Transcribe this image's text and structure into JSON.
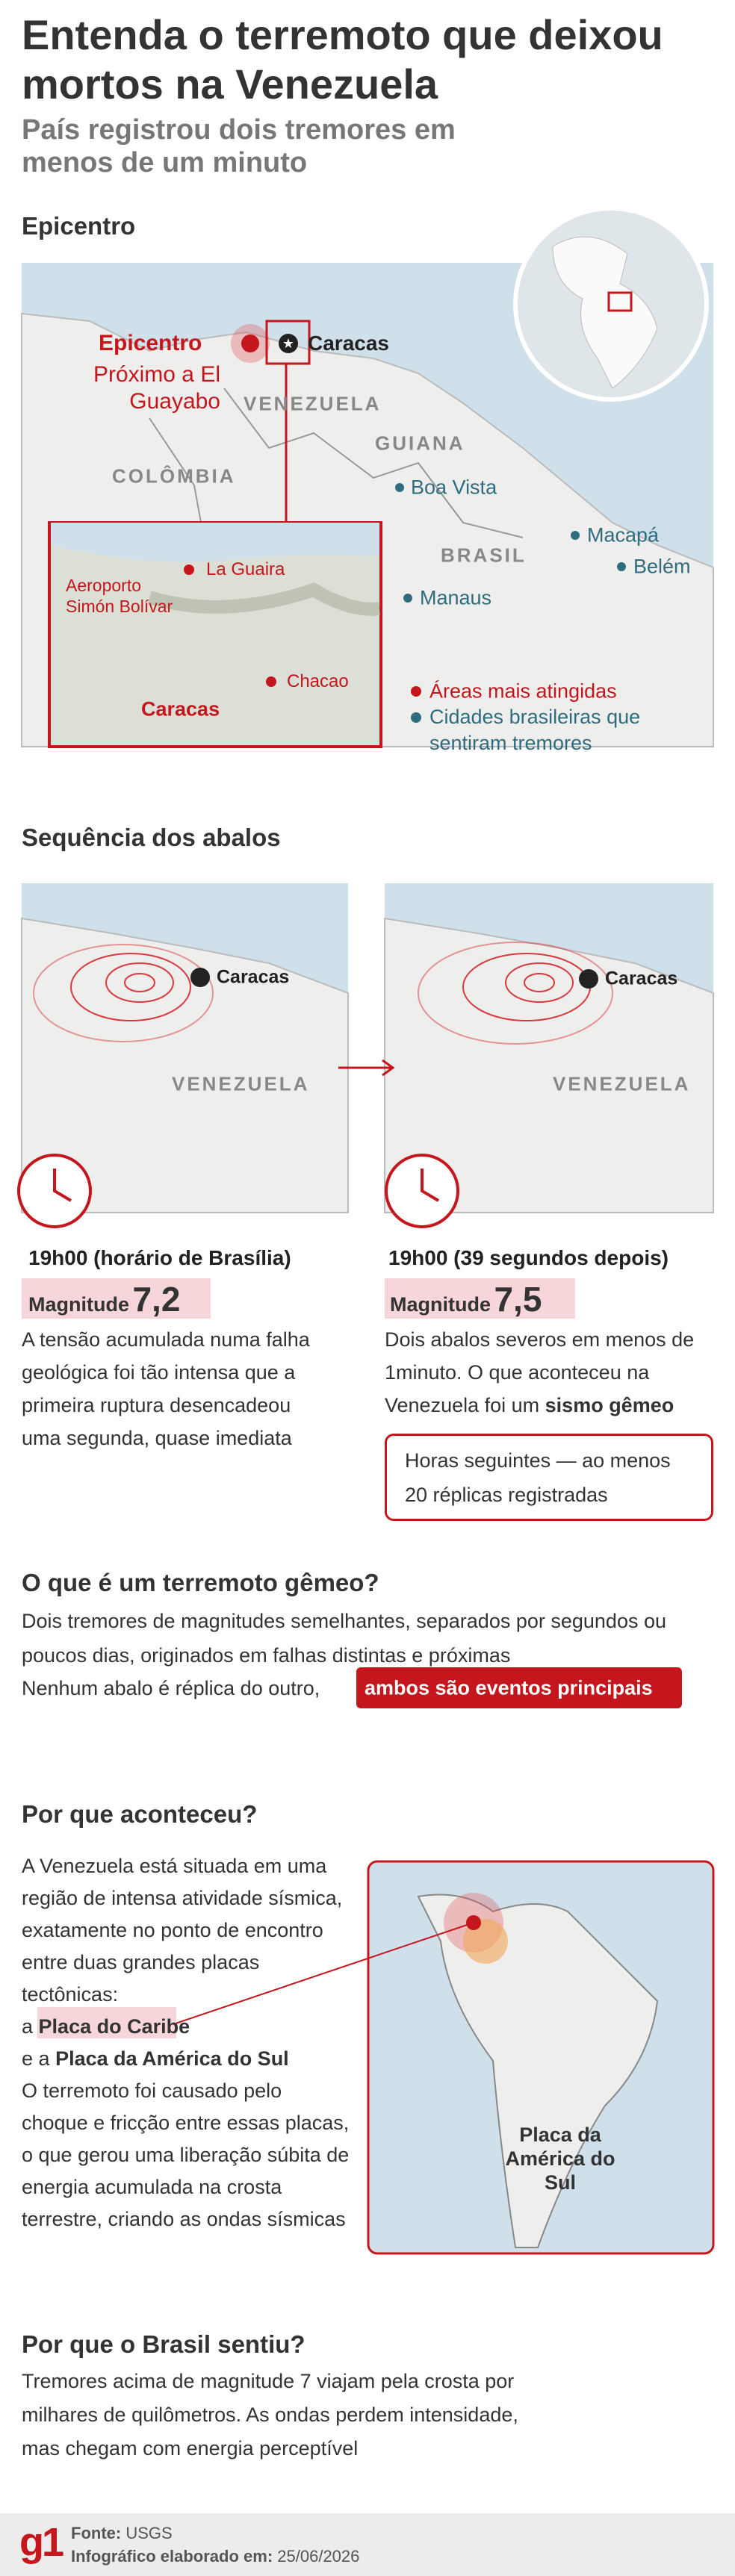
{
  "header": {
    "title": "Entenda o terremoto que deixou mortos na Venezuela",
    "subtitle": "País registrou dois tremores em menos de um minuto"
  },
  "epicenter": {
    "heading": "Epicentro",
    "epicenter_label": "Epicentro",
    "near_label": "Próximo a El Guayabo",
    "capital": "Caracas",
    "countries": [
      "VENEZUELA",
      "GUIANA",
      "COLÔMBIA",
      "BRASIL"
    ],
    "brazil_cities": [
      "Boa Vista",
      "Macapá",
      "Belém",
      "Manaus"
    ],
    "inset_labels": {
      "airport": "Aeroporto Simón Bolívar",
      "port": "La Guaira",
      "district": "Chacao",
      "city": "Caracas"
    },
    "legend": [
      "Áreas mais atingidas",
      "Cidades brasileiras que sentiram tremores"
    ]
  },
  "sequence": {
    "heading": "Sequência dos abalos",
    "map_capital": "Caracas",
    "map_country": "VENEZUELA",
    "events": [
      {
        "time": "19h00 (horário de Brasília)",
        "magnitude_label": "Magnitude",
        "magnitude": "7,2",
        "text": "A tensão acumulada numa falha geológica foi tão intensa que a primeira ruptura desencadeou uma segunda, quase imediata"
      },
      {
        "time": "19h00 (39 segundos depois)",
        "magnitude_label": "Magnitude",
        "magnitude": "7,5",
        "text": "Dois abalos severos em menos de 1minuto. O que aconteceu na Venezuela foi um",
        "text_bold": "sismo gêmeo"
      }
    ],
    "note": "Horas seguintes — ao menos 20 réplicas registradas"
  },
  "twin": {
    "heading": "O que é um terremoto gêmeo?",
    "text": "Dois tremores de magnitudes semelhantes, separados por segundos ou poucos dias, originados em falhas distintas e próximas",
    "text2": "Nenhum abalo é réplica do outro,",
    "highlight": "ambos são eventos principais"
  },
  "why": {
    "heading": "Por que aconteceu?",
    "text": "A Venezuela está situada em uma região de intensa atividade sísmica, exatamente no ponto de encontro entre duas grandes placas tectônicas:",
    "plate1_prefix": "a",
    "plate1": "Placa do Caribe",
    "plate2_prefix": "e a",
    "plate2": "Placa da América do Sul",
    "text2": "O terremoto foi causado pelo choque e fricção entre essas placas, o que gerou uma liberação súbita de energia acumulada na crosta terrestre, criando as ondas sísmicas",
    "map_label": "Placa da América do Sul"
  },
  "brazil": {
    "heading": "Por que o Brasil sentiu?",
    "text": "Tremores acima de magnitude 7 viajam pela crosta por milhares de quilômetros. As ondas perdem intensidade, mas chegam com energia perceptível"
  },
  "footer": {
    "logo": "g1",
    "source_label": "Fonte:",
    "source": "USGS",
    "date_label": "Infográfico elaborado em:",
    "date": "25/06/2026"
  }
}
